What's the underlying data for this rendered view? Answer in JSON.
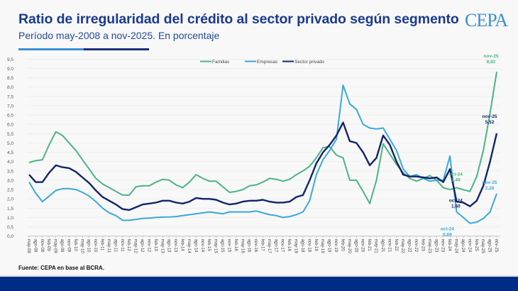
{
  "header": {
    "title": "Ratio de irregularidad del crédito al sector privado según segmento",
    "subtitle": "Período may-2008 a nov-2025. En porcentaje",
    "logo": "CEPA"
  },
  "footer": {
    "source": "Fuente: CEPA en base al BCRA."
  },
  "colors": {
    "title": "#1b3a8e",
    "familias": "#4cb387",
    "empresas": "#3aa9d8",
    "sector_privado": "#14246b",
    "bottom_bar": "#002c85"
  },
  "chart_data": {
    "type": "line",
    "title": "Ratio de irregularidad del crédito al sector privado según segmento",
    "xlabel": "",
    "ylabel": "",
    "ylim": [
      0,
      9.5
    ],
    "yticks": [
      "0,0",
      "0,5",
      "1,0",
      "1,5",
      "2,0",
      "2,5",
      "3,0",
      "3,5",
      "4,0",
      "4,5",
      "5,0",
      "5,5",
      "6,0",
      "6,5",
      "7,0",
      "7,5",
      "8,0",
      "8,5",
      "9,0",
      "9,5"
    ],
    "grid": true,
    "legend_position": "top-center",
    "categories": [
      "may-08",
      "ago-08",
      "nov-08",
      "feb-09",
      "may-09",
      "ago-09",
      "nov-09",
      "feb-10",
      "may-10",
      "ago-10",
      "nov-10",
      "feb-11",
      "may-11",
      "ago-11",
      "nov-11",
      "feb-12",
      "may-12",
      "ago-12",
      "nov-12",
      "feb-13",
      "may-13",
      "ago-13",
      "nov-13",
      "feb-14",
      "may-14",
      "ago-14",
      "nov-14",
      "feb-15",
      "may-15",
      "ago-15",
      "nov-15",
      "feb-16",
      "may-16",
      "ago-16",
      "nov-16",
      "feb-17",
      "may-17",
      "ago-17",
      "nov-17",
      "feb-18",
      "may-18",
      "ago-18",
      "nov-18",
      "feb-19",
      "may-19",
      "ago-19",
      "nov-19",
      "feb-20",
      "may-20",
      "ago-20",
      "nov-20",
      "feb-21",
      "may-21",
      "ago-21",
      "nov-21",
      "feb-22",
      "may-22",
      "ago-22",
      "nov-22",
      "feb-23",
      "may-23",
      "ago-23",
      "nov-23",
      "feb-24",
      "may-24",
      "ago-24",
      "nov-24",
      "feb-25",
      "may-25",
      "ago-25",
      "nov-25"
    ],
    "series": [
      {
        "name": "Familias",
        "color": "#4cb387",
        "values": [
          3.95,
          4.05,
          4.1,
          4.9,
          5.6,
          5.4,
          5.0,
          4.6,
          4.1,
          3.6,
          3.1,
          2.8,
          2.6,
          2.4,
          2.2,
          2.2,
          2.65,
          2.7,
          2.7,
          2.9,
          3.05,
          3.0,
          2.75,
          2.6,
          2.9,
          3.3,
          3.1,
          2.95,
          2.95,
          2.65,
          2.35,
          2.4,
          2.5,
          2.7,
          2.75,
          2.9,
          3.1,
          3.05,
          2.95,
          3.05,
          3.3,
          3.5,
          3.75,
          4.2,
          4.75,
          4.8,
          4.35,
          4.2,
          3.0,
          3.0,
          2.4,
          1.75,
          3.0,
          4.95,
          4.4,
          3.85,
          3.4,
          3.1,
          2.95,
          3.1,
          3.25,
          3.0,
          2.6,
          2.5,
          2.6,
          2.49,
          2.4,
          3.2,
          4.6,
          6.6,
          8.82
        ]
      },
      {
        "name": "Empresas",
        "color": "#3aa9d8",
        "values": [
          2.9,
          2.3,
          1.85,
          2.15,
          2.45,
          2.55,
          2.55,
          2.5,
          2.35,
          2.15,
          1.85,
          1.5,
          1.25,
          1.1,
          0.85,
          0.85,
          0.9,
          0.95,
          0.97,
          1.0,
          1.02,
          1.03,
          1.05,
          1.1,
          1.15,
          1.2,
          1.25,
          1.3,
          1.25,
          1.2,
          1.3,
          1.3,
          1.3,
          1.3,
          1.35,
          1.25,
          1.15,
          1.1,
          1.0,
          1.05,
          1.15,
          1.3,
          1.9,
          3.3,
          4.1,
          4.6,
          5.2,
          8.1,
          7.1,
          6.8,
          6.0,
          5.8,
          5.75,
          5.8,
          5.2,
          4.6,
          3.6,
          3.2,
          3.3,
          3.1,
          2.95,
          3.0,
          3.0,
          4.3,
          1.3,
          1.0,
          0.69,
          0.75,
          0.95,
          1.3,
          2.28
        ]
      },
      {
        "name": "Sector privado",
        "color": "#14246b",
        "values": [
          3.3,
          2.9,
          2.9,
          3.4,
          3.8,
          3.7,
          3.65,
          3.45,
          3.15,
          2.85,
          2.45,
          2.1,
          1.9,
          1.7,
          1.45,
          1.4,
          1.55,
          1.7,
          1.75,
          1.8,
          1.9,
          1.9,
          1.8,
          1.75,
          1.85,
          2.05,
          2.0,
          2.0,
          1.95,
          1.8,
          1.7,
          1.75,
          1.85,
          1.9,
          1.9,
          1.95,
          1.85,
          1.8,
          1.8,
          1.85,
          2.1,
          2.2,
          3.0,
          3.9,
          4.5,
          4.9,
          5.4,
          6.1,
          5.1,
          5.0,
          4.5,
          3.8,
          4.2,
          5.4,
          4.9,
          4.0,
          3.3,
          3.2,
          3.2,
          3.15,
          3.1,
          3.15,
          2.9,
          3.6,
          1.85,
          1.8,
          1.6,
          1.9,
          2.7,
          4.0,
          5.52
        ]
      }
    ],
    "annotations": [
      {
        "series": "Familias",
        "period": "nov-25",
        "value": "8,82"
      },
      {
        "series": "Sector privado",
        "period": "nov-25",
        "value": "5,52"
      },
      {
        "series": "Empresas",
        "period": "nov-25",
        "value": "2,28"
      },
      {
        "series": "Familias",
        "period": "oct-24",
        "value": "2,49"
      },
      {
        "series": "Sector privado",
        "period": "oct-24",
        "value": "1,60"
      },
      {
        "series": "Empresas",
        "period": "oct-24",
        "value": "0,69"
      }
    ]
  }
}
